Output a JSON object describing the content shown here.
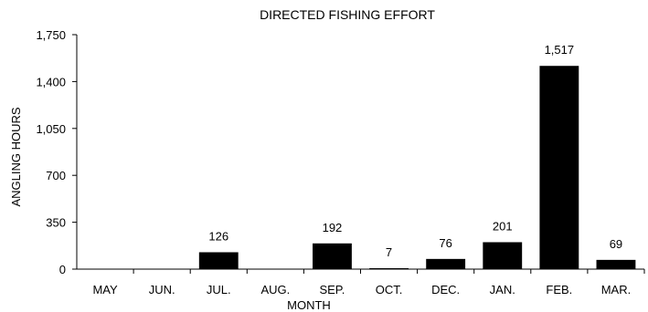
{
  "chart_data": {
    "type": "bar",
    "title": "DIRECTED FISHING EFFORT",
    "xlabel": "MONTH",
    "ylabel": "ANGLING HOURS",
    "categories": [
      "MAY",
      "JUN.",
      "JUL.",
      "AUG.",
      "SEP.",
      "OCT.",
      "DEC.",
      "JAN.",
      "FEB.",
      "MAR."
    ],
    "values": [
      0,
      0,
      126,
      0,
      192,
      7,
      76,
      201,
      1517,
      69
    ],
    "data_labels": [
      "",
      "",
      "126",
      "",
      "192",
      "7",
      "76",
      "201",
      "1,517",
      "69"
    ],
    "ylim": [
      0,
      1750
    ],
    "y_ticks": [
      0,
      350,
      700,
      1050,
      1400,
      1750
    ],
    "y_tick_labels": [
      "0",
      "350",
      "700",
      "1,050",
      "1,400",
      "1,750"
    ],
    "grid": false,
    "legend": "none",
    "bar_color": "#000000"
  }
}
